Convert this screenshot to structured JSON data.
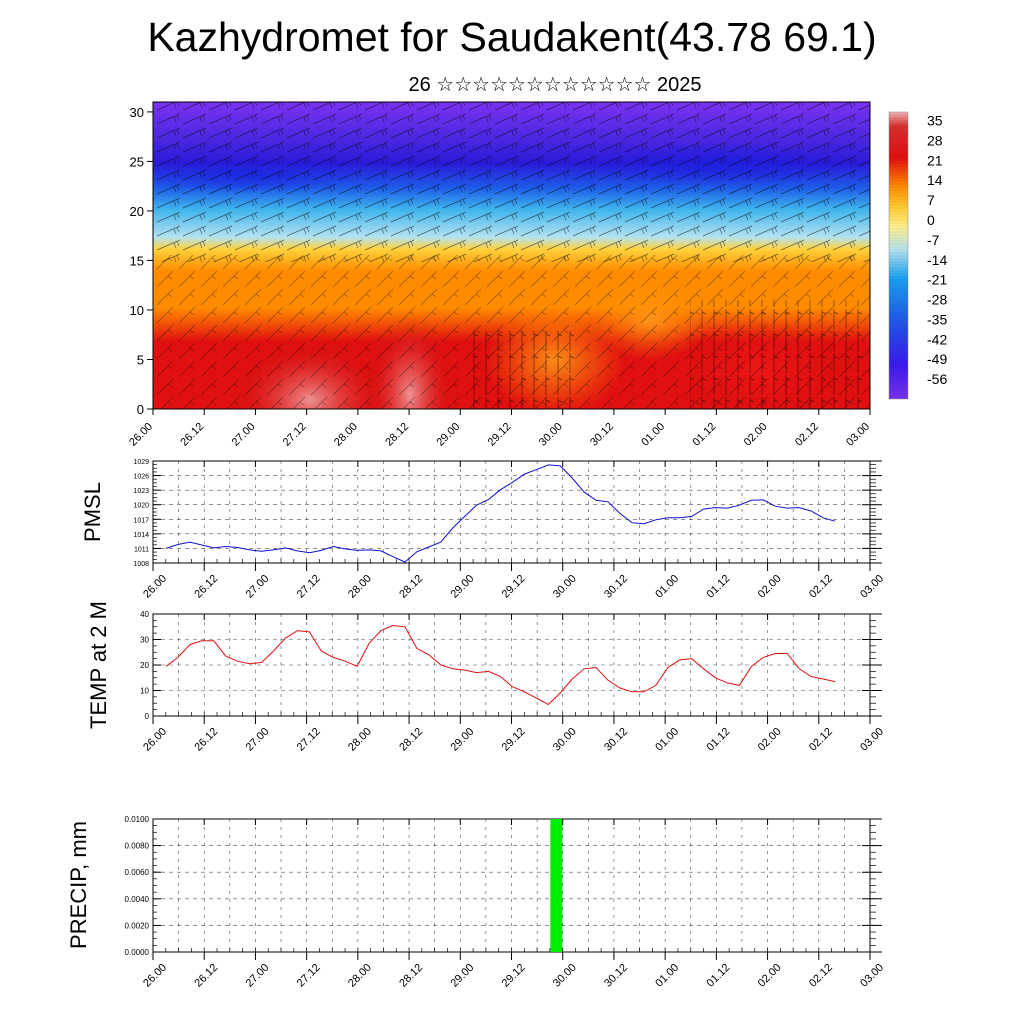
{
  "title": "Kazhydromet for Saudakent(43.78 69.1)",
  "subtitle": "26 ☆☆☆☆☆☆☆☆☆☆☆☆ 2025",
  "x_ticks": [
    "26.00",
    "26.12",
    "27.00",
    "27.12",
    "28.00",
    "28.12",
    "29.00",
    "29.12",
    "30.00",
    "30.12",
    "01.00",
    "01.12",
    "02.00",
    "02.12",
    "03.00"
  ],
  "chart_data": [
    {
      "type": "heatmap",
      "name": "cross-section",
      "x_ticks": [
        "26.00",
        "26.12",
        "27.00",
        "27.12",
        "28.00",
        "28.12",
        "29.00",
        "29.12",
        "30.00",
        "30.12",
        "01.00",
        "01.12",
        "02.00",
        "02.12",
        "03.00"
      ],
      "yticks": [
        "0",
        "5",
        "10",
        "15",
        "20",
        "25",
        "30"
      ],
      "ylim": [
        0,
        31
      ],
      "colorbar": {
        "labels": [
          "35",
          "28",
          "21",
          "14",
          "7",
          "0",
          "-7",
          "-14",
          "-21",
          "-28",
          "-35",
          "-42",
          "-49",
          "-56"
        ],
        "range": [
          -63,
          38
        ]
      },
      "colors": {
        "hot": "#e01010",
        "warm": "#ff8c00",
        "mild": "#ffd23c",
        "cool": "#b4e2f0",
        "cold": "#1e5ce8",
        "coldest": "#2a1ad8",
        "top": "#7a32f0"
      },
      "wind_barbs": true
    },
    {
      "type": "line",
      "ylabel": "PMSL",
      "x_ticks": [
        "26.00",
        "26.12",
        "27.00",
        "27.12",
        "28.00",
        "28.12",
        "29.00",
        "29.12",
        "30.00",
        "30.12",
        "01.00",
        "01.12",
        "02.00",
        "02.12",
        "03.00"
      ],
      "yticks": [
        "1008",
        "1011",
        "1014",
        "1017",
        "1020",
        "1023",
        "1026",
        "1029"
      ],
      "ylim": [
        1008,
        1029
      ],
      "color": "#1010d0",
      "values": [
        1011,
        1011.8,
        1012.3,
        1011.7,
        1011.1,
        1011.4,
        1011.2,
        1010.7,
        1010.4,
        1010.7,
        1011.1,
        1010.5,
        1010.1,
        1010.6,
        1011.4,
        1010.9,
        1010.6,
        1010.7,
        1010.5,
        1009.3,
        1008.2,
        1010.3,
        1011.3,
        1012.3,
        1015.2,
        1017.6,
        1019.9,
        1021.1,
        1023.1,
        1024.6,
        1026.3,
        1027.2,
        1028.2,
        1028.0,
        1025.5,
        1022.6,
        1020.9,
        1020.6,
        1018.2,
        1016.3,
        1016.1,
        1016.9,
        1017.3,
        1017.3,
        1017.6,
        1019.1,
        1019.4,
        1019.3,
        1019.9,
        1020.9,
        1021.0,
        1019.7,
        1019.3,
        1019.4,
        1018.7,
        1017.3,
        1016.6
      ],
      "grid": true
    },
    {
      "type": "line",
      "ylabel": "TEMP at 2 M",
      "x_ticks": [
        "26.00",
        "26.12",
        "27.00",
        "27.12",
        "28.00",
        "28.12",
        "29.00",
        "29.12",
        "30.00",
        "30.12",
        "01.00",
        "01.12",
        "02.00",
        "02.12",
        "03.00"
      ],
      "yticks": [
        "0",
        "10",
        "20",
        "30",
        "40"
      ],
      "ylim": [
        0,
        40
      ],
      "color": "#e01010",
      "values": [
        19.5,
        23,
        28,
        29.5,
        29.5,
        23.5,
        21.5,
        20.5,
        21,
        25.5,
        30.5,
        33.5,
        33,
        25.5,
        23,
        21.5,
        19.5,
        28.5,
        33.5,
        35.5,
        35,
        26.5,
        24,
        20,
        18.5,
        18,
        17,
        17.5,
        15.5,
        11.5,
        9.5,
        7,
        4.5,
        9,
        14.5,
        18.5,
        19,
        14,
        11,
        9.5,
        9.5,
        12,
        19,
        22,
        22.5,
        18.5,
        15,
        13,
        12,
        19.5,
        23,
        24.5,
        24.5,
        18.5,
        15.5,
        14.5,
        13.5
      ],
      "grid": true
    },
    {
      "type": "bar",
      "ylabel": "PRECIP, mm",
      "x_ticks": [
        "26.00",
        "26.12",
        "27.00",
        "27.12",
        "28.00",
        "28.12",
        "29.00",
        "29.12",
        "30.00",
        "30.12",
        "01.00",
        "01.12",
        "02.00",
        "02.12",
        "03.00"
      ],
      "yticks": [
        "0.0000",
        "0.0020",
        "0.0040",
        "0.0060",
        "0.0080",
        "0.0100"
      ],
      "ylim": [
        0,
        0.01
      ],
      "color": "#00ee00",
      "values": [
        {
          "x": 31.5,
          "value": 0.01
        }
      ],
      "grid": true
    }
  ]
}
